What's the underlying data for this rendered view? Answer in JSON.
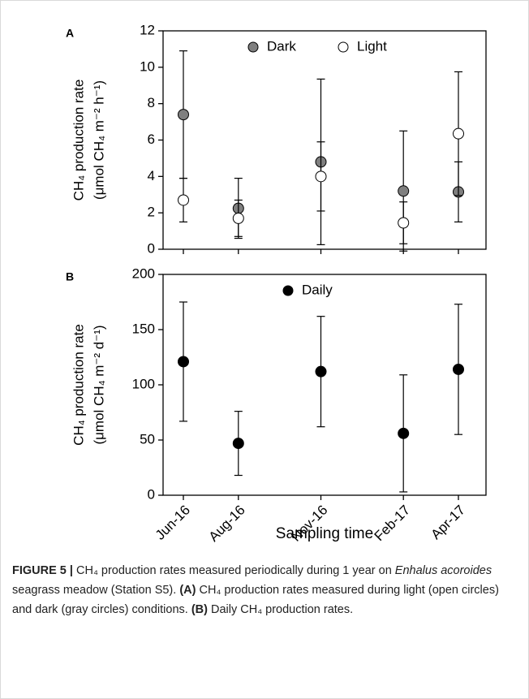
{
  "chart_data": [
    {
      "type": "errorbar",
      "panel_label": "A",
      "ylabel": [
        "CH₄ production rate",
        "(μmol CH₄ m⁻² h⁻¹)"
      ],
      "ylim": [
        0,
        12
      ],
      "yticks": [
        0,
        2,
        4,
        6,
        8,
        10,
        12
      ],
      "series": [
        {
          "name": "Dark",
          "color": "#7f7f7f",
          "values": [
            7.4,
            2.25,
            4.8,
            3.2,
            3.15
          ],
          "errors": [
            3.5,
            1.65,
            4.55,
            3.3,
            1.65
          ]
        },
        {
          "name": "Light",
          "color": "#ffffff",
          "values": [
            2.7,
            1.7,
            4.0,
            1.45,
            6.35
          ],
          "errors": [
            1.2,
            1.0,
            1.9,
            1.15,
            3.4
          ]
        }
      ]
    },
    {
      "type": "errorbar",
      "panel_label": "B",
      "ylabel": [
        "CH₄ production rate",
        "(μmol CH₄ m⁻² d⁻¹)"
      ],
      "xlabel": "Sampling time",
      "categories": [
        "Jun-16",
        "Aug-16",
        "Nov-16",
        "Feb-17",
        "Apr-17"
      ],
      "ylim": [
        0,
        200
      ],
      "yticks": [
        0,
        50,
        100,
        150,
        200
      ],
      "series": [
        {
          "name": "Daily",
          "color": "#000000",
          "values": [
            121,
            47,
            112,
            56,
            114
          ],
          "errors": [
            54,
            29,
            50,
            53,
            59
          ]
        }
      ]
    }
  ],
  "caption": [
    "FIGURE 5 |",
    " CH₄ production rates measured periodically during 1 year on ",
    "Enhalus acoroides",
    " seagrass meadow (Station S5). ",
    "(A)",
    " CH₄ production rates measured during light (open circles) and dark (gray circles) conditions. ",
    "(B)",
    " Daily CH₄ production rates."
  ]
}
